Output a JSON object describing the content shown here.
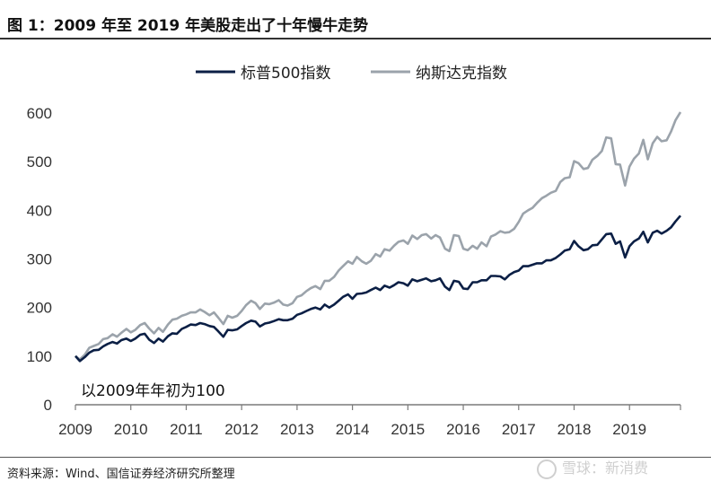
{
  "title": "图 1：2009 年至 2019 年美股走出了十年慢牛走势",
  "source": "资料来源：Wind、国信证券经济研究所整理",
  "watermark": "雪球：新消费",
  "chart_data": {
    "type": "line",
    "title": "",
    "xlabel": "",
    "ylabel": "",
    "xlim": [
      2009,
      2019.92
    ],
    "ylim": [
      0,
      600
    ],
    "yticks": [
      0,
      100,
      200,
      300,
      400,
      500,
      600
    ],
    "xticks": [
      "2009",
      "2010",
      "2011",
      "2012",
      "2013",
      "2014",
      "2015",
      "2016",
      "2017",
      "2018",
      "2019"
    ],
    "grid": false,
    "legend_position": "top",
    "annotation": "以2009年年初为100",
    "series": [
      {
        "name": "标普500指数",
        "color": "#0b1f45",
        "x": [
          2009.0,
          2009.08,
          2009.17,
          2009.25,
          2009.33,
          2009.42,
          2009.5,
          2009.58,
          2009.67,
          2009.75,
          2009.83,
          2009.92,
          2010.0,
          2010.08,
          2010.17,
          2010.25,
          2010.33,
          2010.42,
          2010.5,
          2010.58,
          2010.67,
          2010.75,
          2010.83,
          2010.92,
          2011.0,
          2011.08,
          2011.17,
          2011.25,
          2011.33,
          2011.42,
          2011.5,
          2011.58,
          2011.67,
          2011.75,
          2011.83,
          2011.92,
          2012.0,
          2012.08,
          2012.17,
          2012.25,
          2012.33,
          2012.42,
          2012.5,
          2012.58,
          2012.67,
          2012.75,
          2012.83,
          2012.92,
          2013.0,
          2013.08,
          2013.17,
          2013.25,
          2013.33,
          2013.42,
          2013.5,
          2013.58,
          2013.67,
          2013.75,
          2013.83,
          2013.92,
          2014.0,
          2014.08,
          2014.17,
          2014.25,
          2014.33,
          2014.42,
          2014.5,
          2014.58,
          2014.67,
          2014.75,
          2014.83,
          2014.92,
          2015.0,
          2015.08,
          2015.17,
          2015.25,
          2015.33,
          2015.42,
          2015.5,
          2015.58,
          2015.67,
          2015.75,
          2015.83,
          2015.92,
          2016.0,
          2016.08,
          2016.17,
          2016.25,
          2016.33,
          2016.42,
          2016.5,
          2016.58,
          2016.67,
          2016.75,
          2016.83,
          2016.92,
          2017.0,
          2017.08,
          2017.17,
          2017.25,
          2017.33,
          2017.42,
          2017.5,
          2017.58,
          2017.67,
          2017.75,
          2017.83,
          2017.92,
          2018.0,
          2018.08,
          2018.17,
          2018.25,
          2018.33,
          2018.42,
          2018.5,
          2018.58,
          2018.67,
          2018.75,
          2018.83,
          2018.92,
          2019.0,
          2019.08,
          2019.17,
          2019.25,
          2019.33,
          2019.42,
          2019.5,
          2019.58,
          2019.67,
          2019.75,
          2019.83,
          2019.92
        ],
        "values": [
          100,
          90,
          98,
          107,
          112,
          113,
          120,
          125,
          129,
          126,
          133,
          136,
          131,
          136,
          144,
          146,
          134,
          127,
          136,
          130,
          141,
          147,
          146,
          156,
          160,
          165,
          164,
          168,
          166,
          162,
          160,
          151,
          140,
          154,
          153,
          155,
          162,
          168,
          173,
          171,
          161,
          167,
          169,
          172,
          176,
          174,
          174,
          177,
          185,
          188,
          193,
          197,
          200,
          196,
          206,
          200,
          206,
          214,
          222,
          227,
          218,
          228,
          229,
          231,
          236,
          241,
          236,
          245,
          241,
          246,
          252,
          250,
          245,
          258,
          254,
          257,
          260,
          254,
          256,
          260,
          243,
          236,
          255,
          253,
          239,
          238,
          252,
          252,
          256,
          256,
          265,
          265,
          264,
          258,
          267,
          273,
          276,
          285,
          285,
          288,
          291,
          291,
          297,
          297,
          302,
          309,
          317,
          320,
          337,
          326,
          318,
          320,
          328,
          329,
          340,
          351,
          352,
          331,
          336,
          303,
          326,
          336,
          342,
          356,
          334,
          354,
          358,
          352,
          358,
          365,
          377,
          389
        ]
      },
      {
        "name": "纳斯达克指数",
        "color": "#9ba3ab",
        "x": [
          2009.0,
          2009.08,
          2009.17,
          2009.25,
          2009.33,
          2009.42,
          2009.5,
          2009.58,
          2009.67,
          2009.75,
          2009.83,
          2009.92,
          2010.0,
          2010.08,
          2010.17,
          2010.25,
          2010.33,
          2010.42,
          2010.5,
          2010.58,
          2010.67,
          2010.75,
          2010.83,
          2010.92,
          2011.0,
          2011.08,
          2011.17,
          2011.25,
          2011.33,
          2011.42,
          2011.5,
          2011.58,
          2011.67,
          2011.75,
          2011.83,
          2011.92,
          2012.0,
          2012.08,
          2012.17,
          2012.25,
          2012.33,
          2012.42,
          2012.5,
          2012.58,
          2012.67,
          2012.75,
          2012.83,
          2012.92,
          2013.0,
          2013.08,
          2013.17,
          2013.25,
          2013.33,
          2013.42,
          2013.5,
          2013.58,
          2013.67,
          2013.75,
          2013.83,
          2013.92,
          2014.0,
          2014.08,
          2014.17,
          2014.25,
          2014.33,
          2014.42,
          2014.5,
          2014.58,
          2014.67,
          2014.75,
          2014.83,
          2014.92,
          2015.0,
          2015.08,
          2015.17,
          2015.25,
          2015.33,
          2015.42,
          2015.5,
          2015.58,
          2015.67,
          2015.75,
          2015.83,
          2015.92,
          2016.0,
          2016.08,
          2016.17,
          2016.25,
          2016.33,
          2016.42,
          2016.5,
          2016.58,
          2016.67,
          2016.75,
          2016.83,
          2016.92,
          2017.0,
          2017.08,
          2017.17,
          2017.25,
          2017.33,
          2017.42,
          2017.5,
          2017.58,
          2017.67,
          2017.75,
          2017.83,
          2017.92,
          2018.0,
          2018.08,
          2018.17,
          2018.25,
          2018.33,
          2018.42,
          2018.5,
          2018.58,
          2018.67,
          2018.75,
          2018.83,
          2018.92,
          2019.0,
          2019.08,
          2019.17,
          2019.25,
          2019.33,
          2019.42,
          2019.5,
          2019.58,
          2019.67,
          2019.75,
          2019.83,
          2019.92
        ],
        "values": [
          100,
          93,
          103,
          117,
          121,
          125,
          135,
          137,
          145,
          140,
          148,
          156,
          149,
          154,
          164,
          168,
          157,
          147,
          158,
          150,
          165,
          175,
          177,
          183,
          186,
          190,
          190,
          196,
          191,
          184,
          190,
          179,
          166,
          183,
          179,
          183,
          193,
          205,
          214,
          209,
          197,
          208,
          207,
          210,
          215,
          206,
          204,
          209,
          222,
          225,
          234,
          240,
          244,
          238,
          255,
          255,
          263,
          276,
          285,
          295,
          290,
          304,
          295,
          290,
          296,
          310,
          305,
          320,
          317,
          327,
          335,
          338,
          331,
          348,
          341,
          349,
          351,
          342,
          349,
          344,
          321,
          316,
          349,
          347,
          321,
          318,
          327,
          321,
          334,
          326,
          346,
          350,
          357,
          354,
          355,
          362,
          376,
          393,
          400,
          405,
          415,
          425,
          430,
          436,
          440,
          458,
          466,
          468,
          501,
          497,
          485,
          487,
          504,
          512,
          522,
          550,
          548,
          495,
          494,
          451,
          490,
          506,
          517,
          545,
          505,
          538,
          551,
          542,
          544,
          562,
          585,
          602
        ]
      }
    ]
  }
}
